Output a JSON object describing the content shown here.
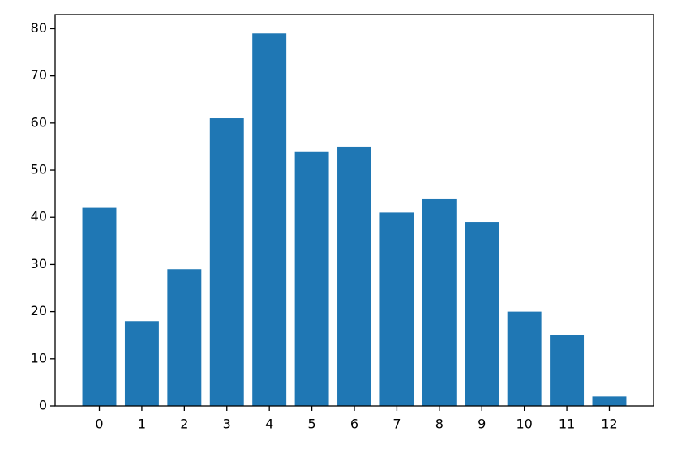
{
  "chart_data": {
    "type": "bar",
    "x": [
      0,
      1,
      2,
      3,
      4,
      5,
      6,
      7,
      8,
      9,
      10,
      11,
      12
    ],
    "values": [
      42,
      18,
      29,
      61,
      79,
      54,
      55,
      41,
      44,
      39,
      20,
      15,
      2
    ],
    "color": "#1f77b4",
    "bar_width": 0.8,
    "xlim": [
      -1.04,
      13.04
    ],
    "xticks": [
      0,
      1,
      2,
      3,
      4,
      5,
      6,
      7,
      8,
      9,
      10,
      11,
      12
    ],
    "ylim": [
      0,
      83
    ],
    "yticks": [
      0,
      10,
      20,
      30,
      40,
      50,
      60,
      70,
      80
    ]
  }
}
